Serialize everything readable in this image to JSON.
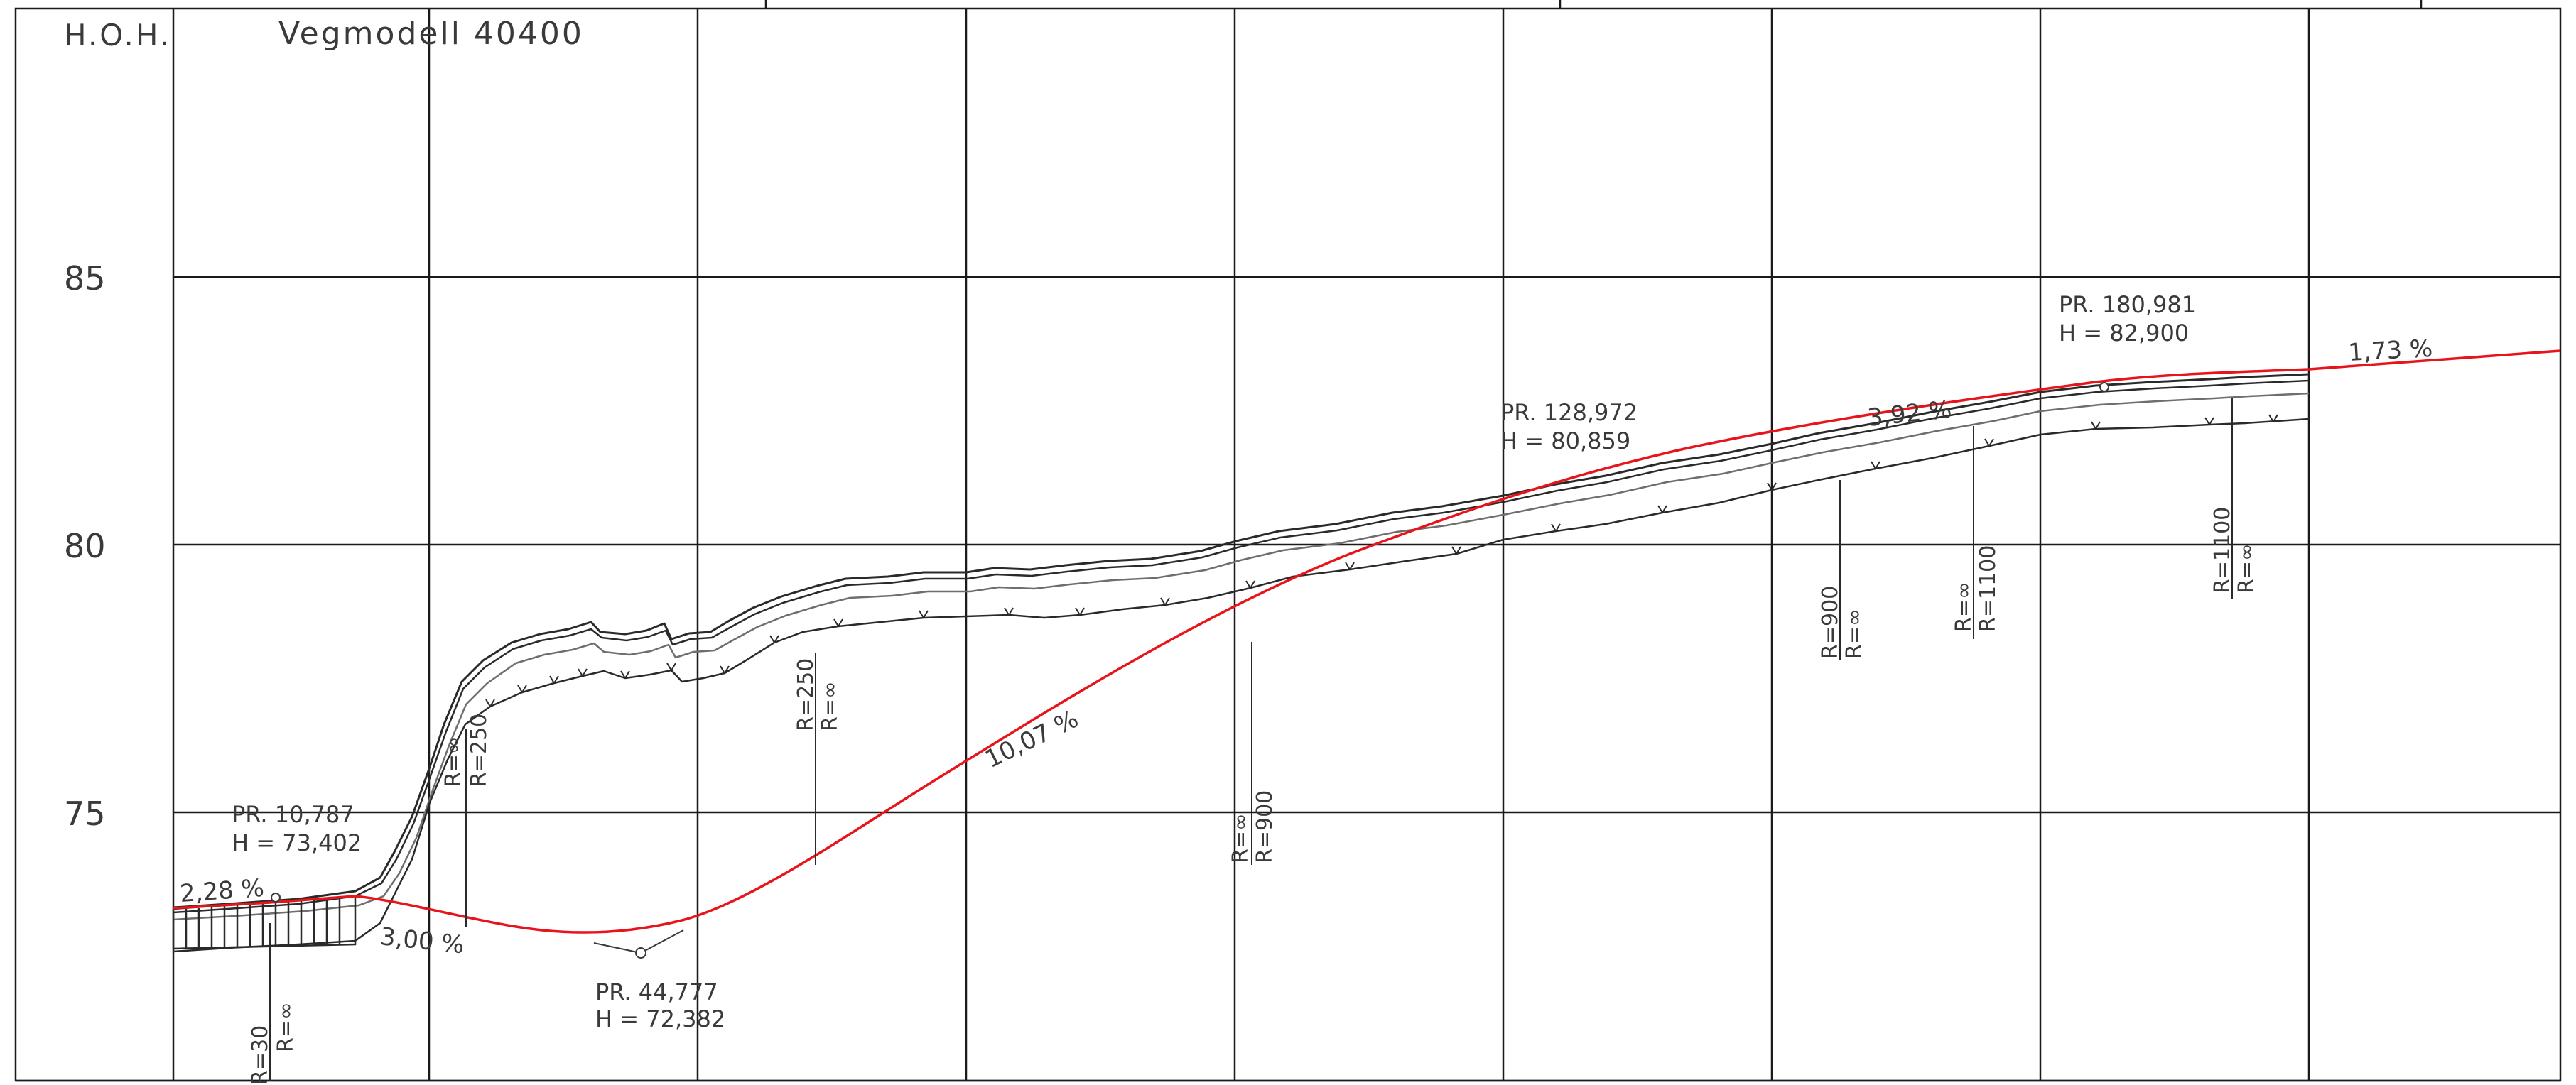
{
  "header": {
    "hoh_label": "H.O.H.",
    "title": "Vegmodell 40400"
  },
  "y_axis": {
    "tick_labels": [
      "75",
      "80",
      "85"
    ],
    "tick_values": [
      75,
      80,
      85
    ]
  },
  "colors": {
    "design_line": "#e8141b",
    "grid": "#1a1a1a",
    "terrain": "#2a2a2a",
    "terrain_light": "#6e6e6e",
    "text": "#3a3a3a"
  },
  "design": {
    "grades": [
      "2,28 %",
      "3,00 %",
      "10,07 %",
      "3,92 %",
      "1,73 %"
    ],
    "points": [
      {
        "pr": "PR. 10,787",
        "h": "H = 73,402"
      },
      {
        "pr": "PR. 44,777",
        "h": "H = 72,382"
      },
      {
        "pr": "PR. 128,972",
        "h": "H = 80,859"
      },
      {
        "pr": "PR. 180,981",
        "h": "H = 82,900"
      }
    ],
    "curves": [
      {
        "a": "R=30",
        "b": "R=∞"
      },
      {
        "a": "R=∞",
        "b": "R=250"
      },
      {
        "a": "R=250",
        "b": "R=∞"
      },
      {
        "a": "R=∞",
        "b": "R=900"
      },
      {
        "a": "R=900",
        "b": "R=∞"
      },
      {
        "a": "R=∞",
        "b": "R=1100"
      },
      {
        "a": "R=1100",
        "b": "R=∞"
      }
    ]
  }
}
